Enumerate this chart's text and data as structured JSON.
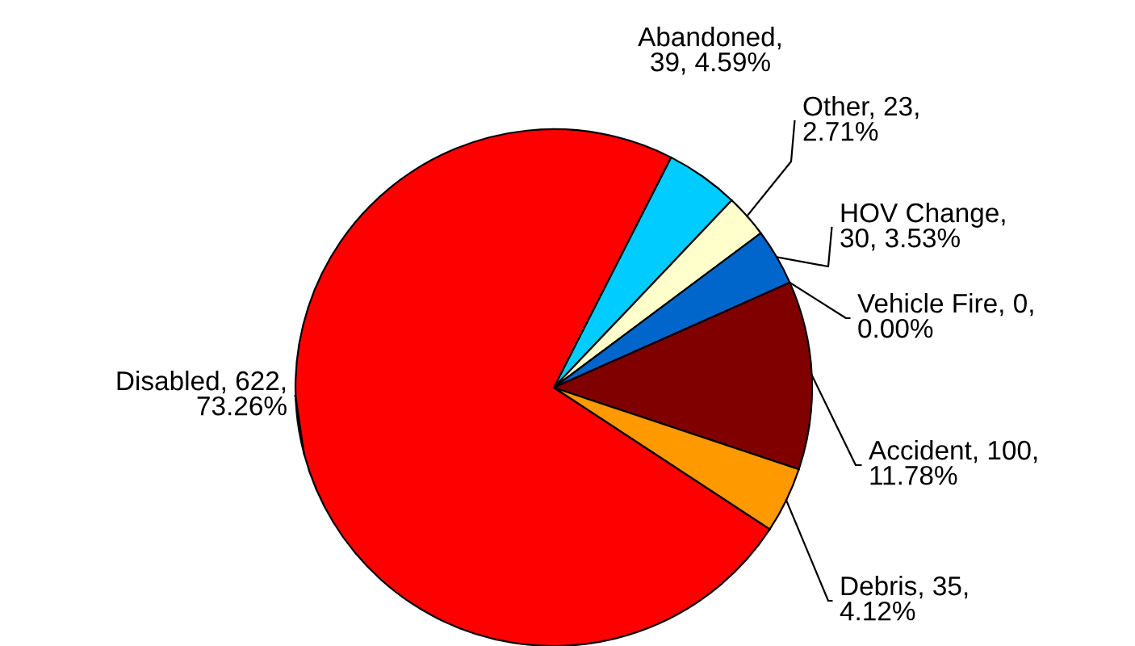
{
  "chart_data": {
    "type": "pie",
    "categories": [
      "Abandoned",
      "Other",
      "HOV Change",
      "Vehicle Fire",
      "Accident",
      "Debris",
      "Disabled"
    ],
    "values": [
      39,
      23,
      30,
      0,
      100,
      35,
      622
    ],
    "colors": [
      "#00ccff",
      "#ffffcc",
      "#0066cc",
      "#993366",
      "#800000",
      "#ff9900",
      "#ff0000"
    ],
    "value_labels": [
      ",\n39, 4.59%",
      ", 23,\n2.71%",
      ",\n30, 3.53%",
      ", 0,\n0.00%",
      ", 100,\n11.78%",
      ", 35,\n4.12%",
      ", 622,\n73.26%"
    ]
  }
}
